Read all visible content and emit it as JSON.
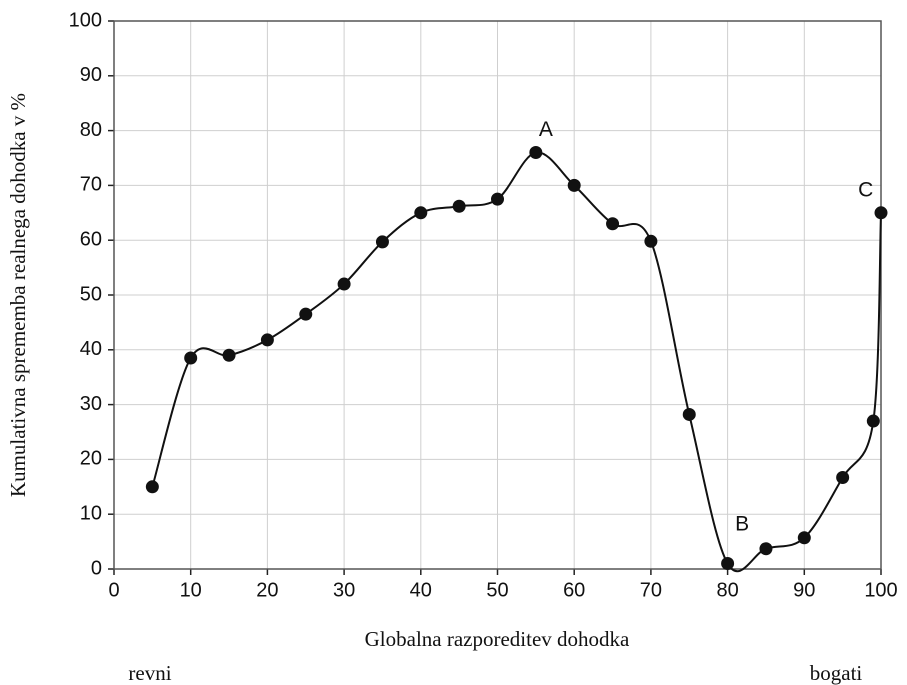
{
  "chart_data": {
    "type": "line",
    "xlabel": "Globalna razporeditev dohodka",
    "ylabel": "Kumulativna sprememba realnega dohodka v %",
    "left_label": "revni",
    "right_label": "bogati",
    "x": [
      5,
      10,
      15,
      20,
      25,
      30,
      35,
      40,
      45,
      50,
      55,
      60,
      65,
      70,
      75,
      80,
      85,
      90,
      95,
      99,
      100
    ],
    "series": [
      {
        "name": "Kumulativna sprememba",
        "color": "#111111",
        "values": [
          15,
          38.5,
          39,
          41.8,
          46.5,
          52,
          59.7,
          65,
          66.2,
          67.5,
          76,
          70,
          63,
          59.8,
          28.2,
          1,
          3.7,
          5.7,
          16.7,
          27,
          65
        ]
      }
    ],
    "xlim": [
      0,
      100
    ],
    "xticks": [
      0,
      10,
      20,
      30,
      40,
      50,
      60,
      70,
      80,
      90,
      100
    ],
    "ylim": [
      0,
      100
    ],
    "yticks": [
      0,
      10,
      20,
      30,
      40,
      50,
      60,
      70,
      80,
      90,
      100
    ],
    "grid": true,
    "annotations": [
      {
        "text": "A",
        "x": 56.3,
        "y": 80
      },
      {
        "text": "B",
        "x": 81.9,
        "y": 8
      },
      {
        "text": "C",
        "x": 98,
        "y": 69
      }
    ]
  }
}
